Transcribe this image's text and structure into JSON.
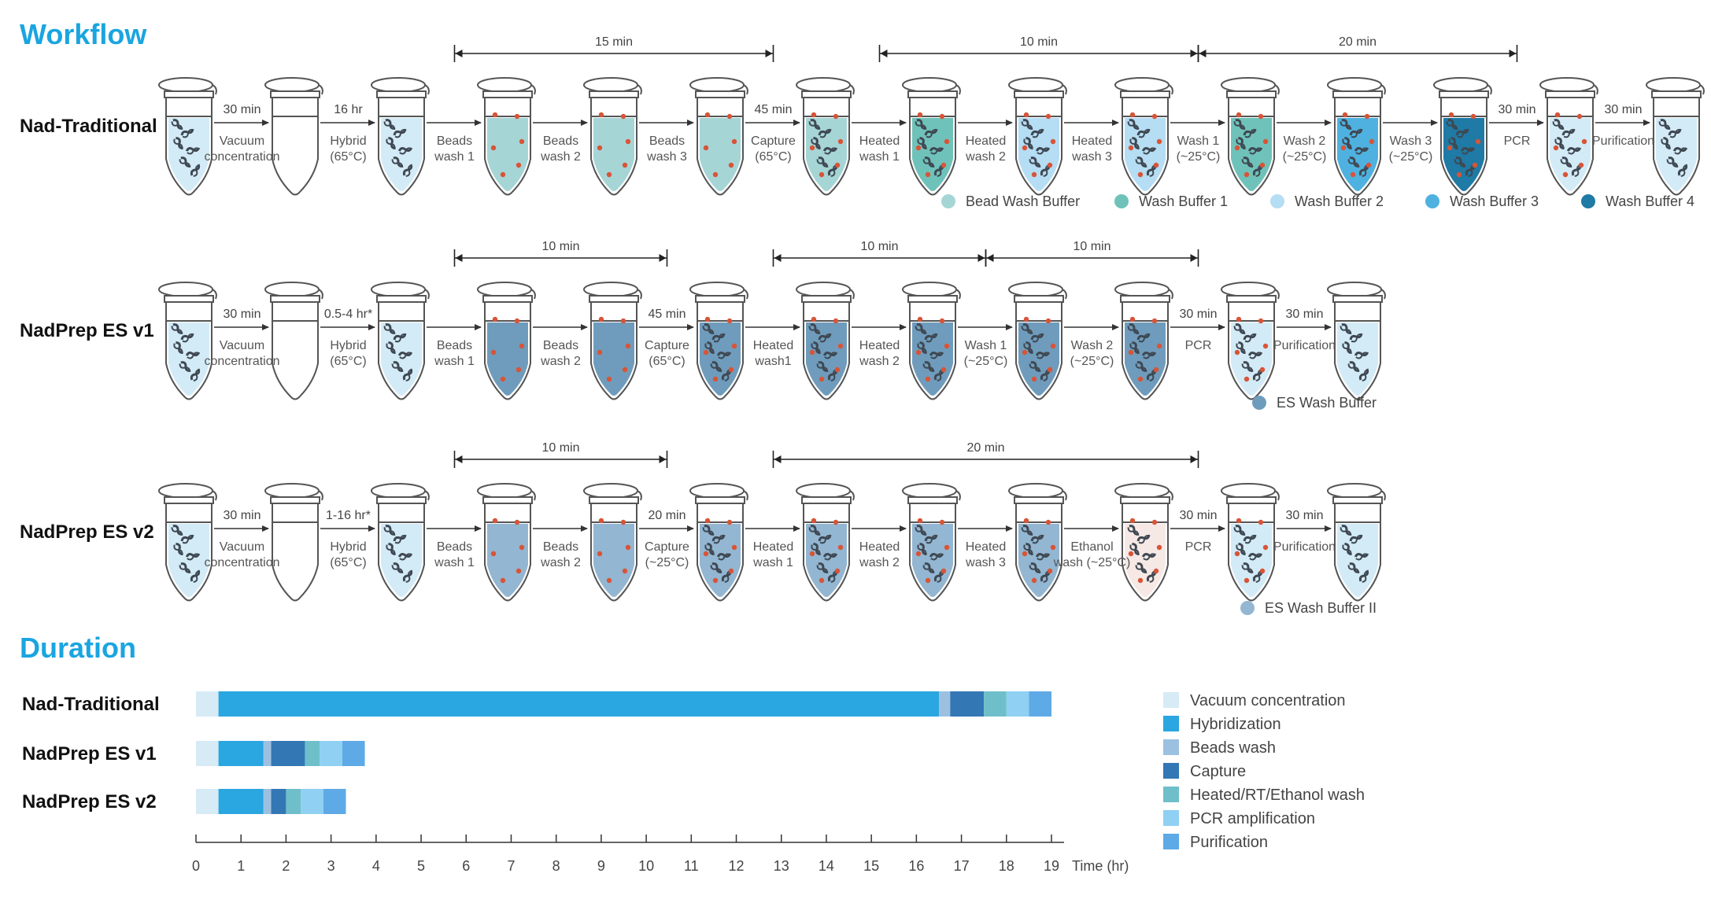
{
  "sections": {
    "workflow": "Workflow",
    "duration": "Duration"
  },
  "colors": {
    "Bead Wash Buffer": "#a6d5d6",
    "Wash Buffer 1": "#6fc2b9",
    "Wash Buffer 2": "#b5ddf3",
    "Wash Buffer 3": "#4fb1df",
    "Wash Buffer 4": "#1f7aa5",
    "ES Wash Buffer": "#6f9cbc",
    "ES Wash Buffer II": "#93b6d2",
    "sample": "#d3ebf6",
    "ethanol": "#f6e9e5",
    "dna": "#3f4852",
    "bead": "#d85437"
  },
  "workflows": [
    {
      "name": "Nad-Traditional",
      "tubes": [
        {
          "fill": "sample",
          "dna": 1,
          "beads": 0
        },
        {
          "fill": "none",
          "dna": 0,
          "beads": 0
        },
        {
          "fill": "sample",
          "dna": 1,
          "beads": 0
        },
        {
          "fill": "Bead Wash Buffer",
          "dna": 0,
          "beads": 1
        },
        {
          "fill": "Bead Wash Buffer",
          "dna": 0,
          "beads": 1
        },
        {
          "fill": "Bead Wash Buffer",
          "dna": 0,
          "beads": 1
        },
        {
          "fill": "Bead Wash Buffer",
          "dna": 1,
          "beads": 1
        },
        {
          "fill": "Wash Buffer 1",
          "dna": 1,
          "beads": 1
        },
        {
          "fill": "Wash Buffer 2",
          "dna": 1,
          "beads": 1
        },
        {
          "fill": "Wash Buffer 2",
          "dna": 1,
          "beads": 1
        },
        {
          "fill": "Wash Buffer 1",
          "dna": 1,
          "beads": 1
        },
        {
          "fill": "Wash Buffer 3",
          "dna": 1,
          "beads": 1
        },
        {
          "fill": "Wash Buffer 4",
          "dna": 1,
          "beads": 1
        },
        {
          "fill": "sample",
          "dna": 1,
          "beads": 1
        },
        {
          "fill": "sample",
          "dna": 1,
          "beads": 0
        }
      ],
      "steps": [
        {
          "time": "30 min",
          "lines": [
            "Vacuum",
            "concentration"
          ]
        },
        {
          "time": "16 hr",
          "lines": [
            "Hybrid",
            "(65°C)"
          ]
        },
        {
          "time": "",
          "lines": [
            "Beads",
            "wash 1"
          ]
        },
        {
          "time": "",
          "lines": [
            "Beads",
            "wash 2"
          ]
        },
        {
          "time": "",
          "lines": [
            "Beads",
            "wash 3"
          ]
        },
        {
          "time": "45 min",
          "lines": [
            "Capture",
            "(65°C)"
          ]
        },
        {
          "time": "",
          "lines": [
            "Heated",
            "wash 1"
          ]
        },
        {
          "time": "",
          "lines": [
            "Heated",
            "wash 2"
          ]
        },
        {
          "time": "",
          "lines": [
            "Heated",
            "wash 3"
          ]
        },
        {
          "time": "",
          "lines": [
            "Wash 1",
            "(~25°C)"
          ]
        },
        {
          "time": "",
          "lines": [
            "Wash 2",
            "(~25°C)"
          ]
        },
        {
          "time": "",
          "lines": [
            "Wash 3",
            "(~25°C)"
          ]
        },
        {
          "time": "30 min",
          "lines": [
            "PCR"
          ]
        },
        {
          "time": "30 min",
          "lines": [
            "Purification"
          ]
        }
      ],
      "brackets": [
        {
          "from": 3,
          "to": 6,
          "label": "15 min"
        },
        {
          "from": 7,
          "to": 10,
          "label": "10 min"
        },
        {
          "from": 10,
          "to": 13,
          "label": "20 min"
        }
      ],
      "legend": [
        "Bead Wash Buffer",
        "Wash Buffer 1",
        "Wash Buffer 2",
        "Wash Buffer 3",
        "Wash Buffer 4"
      ]
    },
    {
      "name": "NadPrep ES v1",
      "tubes": [
        {
          "fill": "sample",
          "dna": 1,
          "beads": 0
        },
        {
          "fill": "none",
          "dna": 0,
          "beads": 0
        },
        {
          "fill": "sample",
          "dna": 1,
          "beads": 0
        },
        {
          "fill": "ES Wash Buffer",
          "dna": 0,
          "beads": 1
        },
        {
          "fill": "ES Wash Buffer",
          "dna": 0,
          "beads": 1
        },
        {
          "fill": "ES Wash Buffer",
          "dna": 1,
          "beads": 1
        },
        {
          "fill": "ES Wash Buffer",
          "dna": 1,
          "beads": 1
        },
        {
          "fill": "ES Wash Buffer",
          "dna": 1,
          "beads": 1
        },
        {
          "fill": "ES Wash Buffer",
          "dna": 1,
          "beads": 1
        },
        {
          "fill": "ES Wash Buffer",
          "dna": 1,
          "beads": 1
        },
        {
          "fill": "sample",
          "dna": 1,
          "beads": 1
        },
        {
          "fill": "sample",
          "dna": 1,
          "beads": 0
        }
      ],
      "steps": [
        {
          "time": "30 min",
          "lines": [
            "Vacuum",
            "concentration"
          ]
        },
        {
          "time": "0.5-4 hr*",
          "lines": [
            "Hybrid",
            "(65°C)"
          ]
        },
        {
          "time": "",
          "lines": [
            "Beads",
            "wash 1"
          ]
        },
        {
          "time": "",
          "lines": [
            "Beads",
            "wash 2"
          ]
        },
        {
          "time": "45 min",
          "lines": [
            "Capture",
            "(65°C)"
          ]
        },
        {
          "time": "",
          "lines": [
            "Heated",
            "wash1"
          ]
        },
        {
          "time": "",
          "lines": [
            "Heated",
            "wash 2"
          ]
        },
        {
          "time": "",
          "lines": [
            "Wash 1",
            "(~25°C)"
          ]
        },
        {
          "time": "",
          "lines": [
            "Wash 2",
            "(~25°C)"
          ]
        },
        {
          "time": "30 min",
          "lines": [
            "PCR"
          ]
        },
        {
          "time": "30 min",
          "lines": [
            "Purification"
          ]
        }
      ],
      "brackets": [
        {
          "from": 3,
          "to": 5,
          "label": "10 min"
        },
        {
          "from": 6,
          "to": 8,
          "label": "10 min"
        },
        {
          "from": 8,
          "to": 10,
          "label": "10 min"
        }
      ],
      "legend": [
        "ES Wash Buffer"
      ]
    },
    {
      "name": "NadPrep ES v2",
      "tubes": [
        {
          "fill": "sample",
          "dna": 1,
          "beads": 0
        },
        {
          "fill": "none",
          "dna": 0,
          "beads": 0
        },
        {
          "fill": "sample",
          "dna": 1,
          "beads": 0
        },
        {
          "fill": "ES Wash Buffer II",
          "dna": 0,
          "beads": 1
        },
        {
          "fill": "ES Wash Buffer II",
          "dna": 0,
          "beads": 1
        },
        {
          "fill": "ES Wash Buffer II",
          "dna": 1,
          "beads": 1
        },
        {
          "fill": "ES Wash Buffer II",
          "dna": 1,
          "beads": 1
        },
        {
          "fill": "ES Wash Buffer II",
          "dna": 1,
          "beads": 1
        },
        {
          "fill": "ES Wash Buffer II",
          "dna": 1,
          "beads": 1
        },
        {
          "fill": "ethanol",
          "dna": 1,
          "beads": 1
        },
        {
          "fill": "sample",
          "dna": 1,
          "beads": 1
        },
        {
          "fill": "sample",
          "dna": 1,
          "beads": 0
        }
      ],
      "steps": [
        {
          "time": "30 min",
          "lines": [
            "Vacuum",
            "concentration"
          ]
        },
        {
          "time": "1-16 hr*",
          "lines": [
            "Hybrid",
            "(65°C)"
          ]
        },
        {
          "time": "",
          "lines": [
            "Beads",
            "wash 1"
          ]
        },
        {
          "time": "",
          "lines": [
            "Beads",
            "wash 2"
          ]
        },
        {
          "time": "20 min",
          "lines": [
            "Capture",
            "(~25°C)"
          ]
        },
        {
          "time": "",
          "lines": [
            "Heated",
            "wash 1"
          ]
        },
        {
          "time": "",
          "lines": [
            "Heated",
            "wash 2"
          ]
        },
        {
          "time": "",
          "lines": [
            "Heated",
            "wash 3"
          ]
        },
        {
          "time": "",
          "lines": [
            "Ethanol",
            "wash (~25°C)"
          ]
        },
        {
          "time": "30 min",
          "lines": [
            "PCR"
          ]
        },
        {
          "time": "30 min",
          "lines": [
            "Purification"
          ]
        }
      ],
      "brackets": [
        {
          "from": 3,
          "to": 5,
          "label": "10 min"
        },
        {
          "from": 6,
          "to": 10,
          "label": "20 min"
        }
      ],
      "legend": [
        "ES Wash Buffer II"
      ]
    }
  ],
  "chart_data": {
    "type": "bar",
    "orientation": "horizontal",
    "stacked": true,
    "title": "Duration",
    "xlabel": "Time (hr)",
    "xlim": [
      0,
      19
    ],
    "xticks": [
      0,
      1,
      2,
      3,
      4,
      5,
      6,
      7,
      8,
      9,
      10,
      11,
      12,
      13,
      14,
      15,
      16,
      17,
      18,
      19
    ],
    "categories": [
      "Nad-Traditional",
      "NadPrep ES v1",
      "NadPrep ES v2"
    ],
    "series": [
      {
        "name": "Vacuum concentration",
        "color": "#d6ebf6",
        "values": [
          0.5,
          0.5,
          0.5
        ]
      },
      {
        "name": "Hybridization",
        "color": "#2aa6e0",
        "values": [
          16,
          1,
          1
        ]
      },
      {
        "name": "Beads wash",
        "color": "#9cc0e0",
        "values": [
          0.25,
          0.17,
          0.17
        ]
      },
      {
        "name": "Capture",
        "color": "#3377b5",
        "values": [
          0.75,
          0.75,
          0.33
        ]
      },
      {
        "name": "Heated/RT/Ethanol wash",
        "color": "#6ebfca",
        "values": [
          0.5,
          0.33,
          0.33
        ]
      },
      {
        "name": "PCR amplification",
        "color": "#8fd0f3",
        "values": [
          0.5,
          0.5,
          0.5
        ]
      },
      {
        "name": "Purification",
        "color": "#5eaae6",
        "values": [
          0.5,
          0.5,
          0.5
        ]
      }
    ]
  }
}
